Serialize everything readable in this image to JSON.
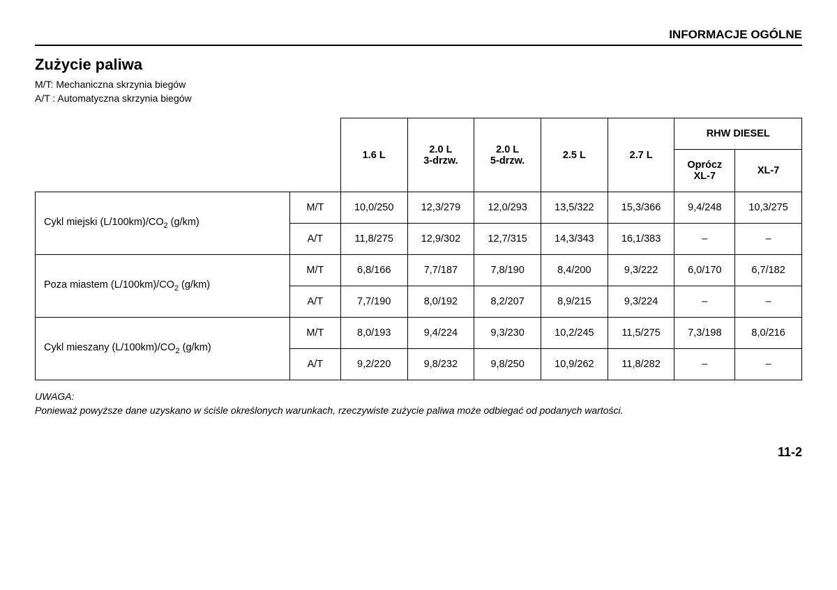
{
  "header": {
    "title": "INFORMACJE OGÓLNE"
  },
  "section": {
    "title": "Zużycie paliwa",
    "legend_mt": "M/T: Mechaniczna skrzynia biegów",
    "legend_at": "A/T : Automatyczna skrzynia biegów"
  },
  "table": {
    "columns": {
      "c1": "1.6 L",
      "c2a": "2.0 L",
      "c2b": "3-drzw.",
      "c3a": "2.0 L",
      "c3b": "5-drzw.",
      "c4": "2.5 L",
      "c5": "2.7 L",
      "diesel_group": "RHW DIESEL",
      "c6a": "Oprócz",
      "c6b": "XL-7",
      "c7": "XL-7"
    },
    "row_labels": {
      "r1_pre": "Cykl miejski (L/100km)/CO",
      "r1_post": " (g/km)",
      "r2_pre": "Poza miastem (L/100km)/CO",
      "r2_post": " (g/km)",
      "r3_pre": "Cykl mieszany (L/100km)/CO",
      "r3_post": " (g/km)"
    },
    "trans": {
      "mt": "M/T",
      "at": "A/T"
    },
    "data": {
      "r1mt": [
        "10,0/250",
        "12,3/279",
        "12,0/293",
        "13,5/322",
        "15,3/366",
        "9,4/248",
        "10,3/275"
      ],
      "r1at": [
        "11,8/275",
        "12,9/302",
        "12,7/315",
        "14,3/343",
        "16,1/383",
        "–",
        "–"
      ],
      "r2mt": [
        "6,8/166",
        "7,7/187",
        "7,8/190",
        "8,4/200",
        "9,3/222",
        "6,0/170",
        "6,7/182"
      ],
      "r2at": [
        "7,7/190",
        "8,0/192",
        "8,2/207",
        "8,9/215",
        "9,3/224",
        "–",
        "–"
      ],
      "r3mt": [
        "8,0/193",
        "9,4/224",
        "9,3/230",
        "10,2/245",
        "11,5/275",
        "7,3/198",
        "8,0/216"
      ],
      "r3at": [
        "9,2/220",
        "9,8/232",
        "9,8/250",
        "10,9/262",
        "11,8/282",
        "–",
        "–"
      ]
    }
  },
  "note": {
    "label": "UWAGA:",
    "text": "Ponieważ powyższe dane uzyskano w ściśle określonych warunkach, rzeczywiste zużycie paliwa może odbiegać od podanych wartości."
  },
  "page_number": "11-2"
}
